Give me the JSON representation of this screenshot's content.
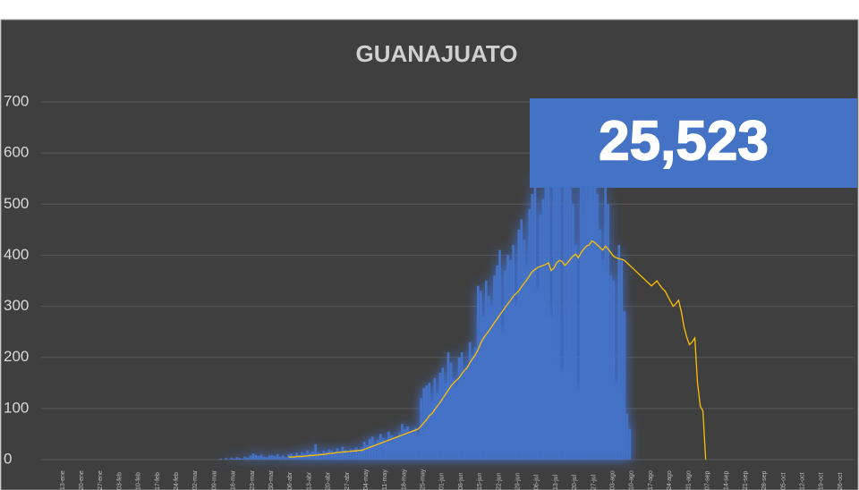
{
  "chart_data": {
    "type": "bar",
    "title": "GUANAJUATO",
    "annotation": "25,523",
    "categories": [
      "13-ene",
      null,
      null,
      null,
      null,
      null,
      null,
      "20-ene",
      null,
      null,
      null,
      null,
      null,
      null,
      "27-ene",
      null,
      null,
      null,
      null,
      null,
      null,
      "03-feb",
      null,
      null,
      null,
      null,
      null,
      null,
      "10-feb",
      null,
      null,
      null,
      null,
      null,
      null,
      "17-feb",
      null,
      null,
      null,
      null,
      null,
      null,
      "24-feb",
      null,
      null,
      null,
      null,
      null,
      null,
      "02-mar",
      null,
      null,
      null,
      null,
      null,
      null,
      "09-mar",
      null,
      null,
      null,
      null,
      null,
      null,
      "16-mar",
      null,
      null,
      null,
      null,
      null,
      null,
      "23-mar",
      null,
      null,
      null,
      null,
      null,
      null,
      "30-mar",
      null,
      null,
      null,
      null,
      null,
      null,
      "06-abr",
      null,
      null,
      null,
      null,
      null,
      null,
      "13-abr",
      null,
      null,
      null,
      null,
      null,
      null,
      "20-abr",
      null,
      null,
      null,
      null,
      null,
      null,
      "27-abr",
      null,
      null,
      null,
      null,
      null,
      null,
      "04-may",
      null,
      null,
      null,
      null,
      null,
      null,
      "11-may",
      null,
      null,
      null,
      null,
      null,
      null,
      "18-may",
      null,
      null,
      null,
      null,
      null,
      null,
      "25-may",
      null,
      null,
      null,
      null,
      null,
      null,
      "01-jun",
      null,
      null,
      null,
      null,
      null,
      null,
      "08-jun",
      null,
      null,
      null,
      null,
      null,
      null,
      "15-jun",
      null,
      null,
      null,
      null,
      null,
      null,
      "22-jun",
      null,
      null,
      null,
      null,
      null,
      null,
      "29-jun",
      null,
      null,
      null,
      null,
      null,
      null,
      "06-jul",
      null,
      null,
      null,
      null,
      null,
      null,
      "13-jul",
      null,
      null,
      null,
      null,
      null,
      null,
      "20-jul",
      null,
      null,
      null,
      null,
      null,
      null,
      "27-jul",
      null,
      null,
      null,
      null,
      null,
      null,
      "03-ago",
      null,
      null,
      null,
      null,
      null,
      null,
      "10-ago",
      null,
      null,
      null,
      null,
      null,
      null,
      "17-ago",
      null,
      null,
      null,
      null,
      null,
      null,
      "24-ago",
      null,
      null,
      null,
      null,
      null,
      null,
      "31-ago",
      null,
      null,
      null,
      null,
      null,
      null,
      "07-sep",
      null,
      null,
      null,
      null,
      null,
      null,
      "14-sep",
      null,
      null,
      null,
      null,
      null,
      null,
      "21-sep",
      null,
      null,
      null,
      null,
      null,
      null,
      "28-sep",
      null,
      null,
      null,
      null,
      null,
      null,
      "05-oct",
      null,
      null,
      null,
      null,
      null,
      null,
      "12-oct",
      null,
      null,
      null,
      null,
      null,
      null,
      "19-oct",
      null,
      null,
      null,
      null,
      null,
      null,
      "26-oct"
    ],
    "series": [
      {
        "type": "bar",
        "color": "#4472c4",
        "values": [
          null,
          null,
          null,
          null,
          null,
          null,
          null,
          null,
          null,
          null,
          null,
          null,
          null,
          null,
          null,
          null,
          null,
          null,
          null,
          null,
          null,
          null,
          null,
          null,
          null,
          null,
          null,
          null,
          null,
          null,
          null,
          null,
          null,
          null,
          null,
          null,
          null,
          null,
          null,
          null,
          null,
          null,
          null,
          null,
          null,
          null,
          null,
          null,
          null,
          null,
          null,
          null,
          null,
          null,
          null,
          null,
          null,
          null,
          null,
          2,
          0,
          3,
          1,
          4,
          2,
          5,
          3,
          2,
          6,
          4,
          8,
          12,
          9,
          7,
          10,
          6,
          5,
          8,
          9,
          7,
          11,
          6,
          8,
          5,
          10,
          12,
          8,
          14,
          9,
          15,
          11,
          18,
          13,
          16,
          30,
          14,
          12,
          17,
          15,
          20,
          18,
          12,
          22,
          16,
          25,
          19,
          14,
          21,
          17,
          24,
          15,
          22,
          35,
          28,
          40,
          45,
          30,
          38,
          50,
          42,
          36,
          55,
          48,
          40,
          45,
          52,
          70,
          60,
          65,
          55,
          58,
          62,
          50,
          120,
          140,
          145,
          150,
          110,
          160,
          130,
          170,
          180,
          150,
          210,
          190,
          160,
          140,
          200,
          210,
          175,
          185,
          230,
          205,
          220,
          340,
          330,
          280,
          350,
          320,
          300,
          360,
          380,
          410,
          250,
          370,
          400,
          390,
          420,
          300,
          450,
          470,
          430,
          380,
          490,
          520,
          560,
          330,
          480,
          510,
          540,
          590,
          280,
          600,
          620,
          570,
          170,
          610,
          650,
          540,
          500,
          420,
          140,
          580,
          600,
          560,
          630,
          640,
          600,
          520,
          450,
          390,
          580,
          500,
          360,
          350,
          150,
          420,
          390,
          290,
          90,
          60,
          null,
          null,
          null,
          null,
          null,
          null,
          null,
          null,
          null,
          null,
          null,
          null,
          null,
          null,
          null,
          null,
          null,
          null,
          null,
          null,
          null,
          null,
          null,
          null,
          null,
          null,
          null,
          null,
          null,
          null,
          null,
          null,
          null,
          null,
          null,
          null,
          null,
          null,
          null,
          null,
          null,
          null,
          null,
          null,
          null,
          null,
          null,
          null,
          null,
          null,
          null,
          null,
          null,
          null,
          null,
          null,
          null,
          null,
          null,
          null,
          null,
          null,
          null,
          null,
          null,
          null,
          null,
          null,
          null,
          null,
          null,
          null,
          null,
          null,
          null,
          null,
          null
        ]
      },
      {
        "type": "line",
        "color": "#ffc000",
        "values": [
          null,
          null,
          null,
          null,
          null,
          null,
          null,
          null,
          null,
          null,
          null,
          null,
          null,
          null,
          null,
          null,
          null,
          null,
          null,
          null,
          null,
          null,
          null,
          null,
          null,
          null,
          null,
          null,
          null,
          null,
          null,
          null,
          null,
          null,
          null,
          null,
          null,
          null,
          null,
          null,
          null,
          null,
          null,
          null,
          null,
          null,
          null,
          null,
          null,
          null,
          null,
          null,
          null,
          null,
          null,
          null,
          null,
          null,
          null,
          null,
          null,
          null,
          null,
          null,
          null,
          null,
          null,
          null,
          null,
          null,
          null,
          null,
          null,
          null,
          null,
          null,
          null,
          null,
          null,
          null,
          null,
          null,
          null,
          null,
          5,
          5,
          5,
          6,
          6,
          6,
          7,
          7,
          8,
          8,
          9,
          9,
          10,
          10,
          11,
          12,
          12,
          13,
          14,
          14,
          15,
          15,
          16,
          16,
          17,
          17,
          18,
          18,
          20,
          22,
          24,
          26,
          28,
          30,
          32,
          34,
          36,
          38,
          40,
          42,
          44,
          46,
          48,
          50,
          52,
          54,
          56,
          58,
          60,
          66,
          72,
          78,
          86,
          90,
          98,
          105,
          112,
          120,
          128,
          136,
          144,
          150,
          155,
          160,
          168,
          175,
          180,
          190,
          198,
          205,
          215,
          228,
          238,
          245,
          252,
          260,
          268,
          275,
          283,
          290,
          298,
          305,
          312,
          320,
          325,
          330,
          338,
          345,
          352,
          360,
          368,
          372,
          376,
          378,
          380,
          382,
          385,
          370,
          375,
          385,
          390,
          388,
          380,
          385,
          392,
          398,
          402,
          395,
          405,
          412,
          418,
          420,
          428,
          425,
          420,
          415,
          410,
          418,
          412,
          405,
          398,
          395,
          393,
          392,
          390,
          385,
          380,
          375,
          370,
          365,
          360,
          355,
          350,
          345,
          340,
          345,
          350,
          342,
          335,
          330,
          320,
          310,
          300,
          305,
          312,
          290,
          260,
          240,
          225,
          230,
          238,
          150,
          105,
          95,
          0,
          null,
          null,
          null,
          null,
          null,
          null,
          null,
          null,
          null,
          null,
          null,
          null,
          null,
          null,
          null,
          null,
          null,
          null,
          null,
          null,
          null,
          null,
          null,
          null,
          null,
          null,
          null,
          null,
          null,
          null,
          null,
          null,
          null,
          null,
          null,
          null,
          null,
          null,
          null,
          null,
          null,
          null,
          null,
          null,
          null,
          null,
          null,
          null,
          null
        ]
      }
    ],
    "ylim": [
      0,
      700
    ],
    "yticks": [
      0,
      100,
      200,
      300,
      400,
      500,
      600,
      700
    ],
    "grid": true
  }
}
